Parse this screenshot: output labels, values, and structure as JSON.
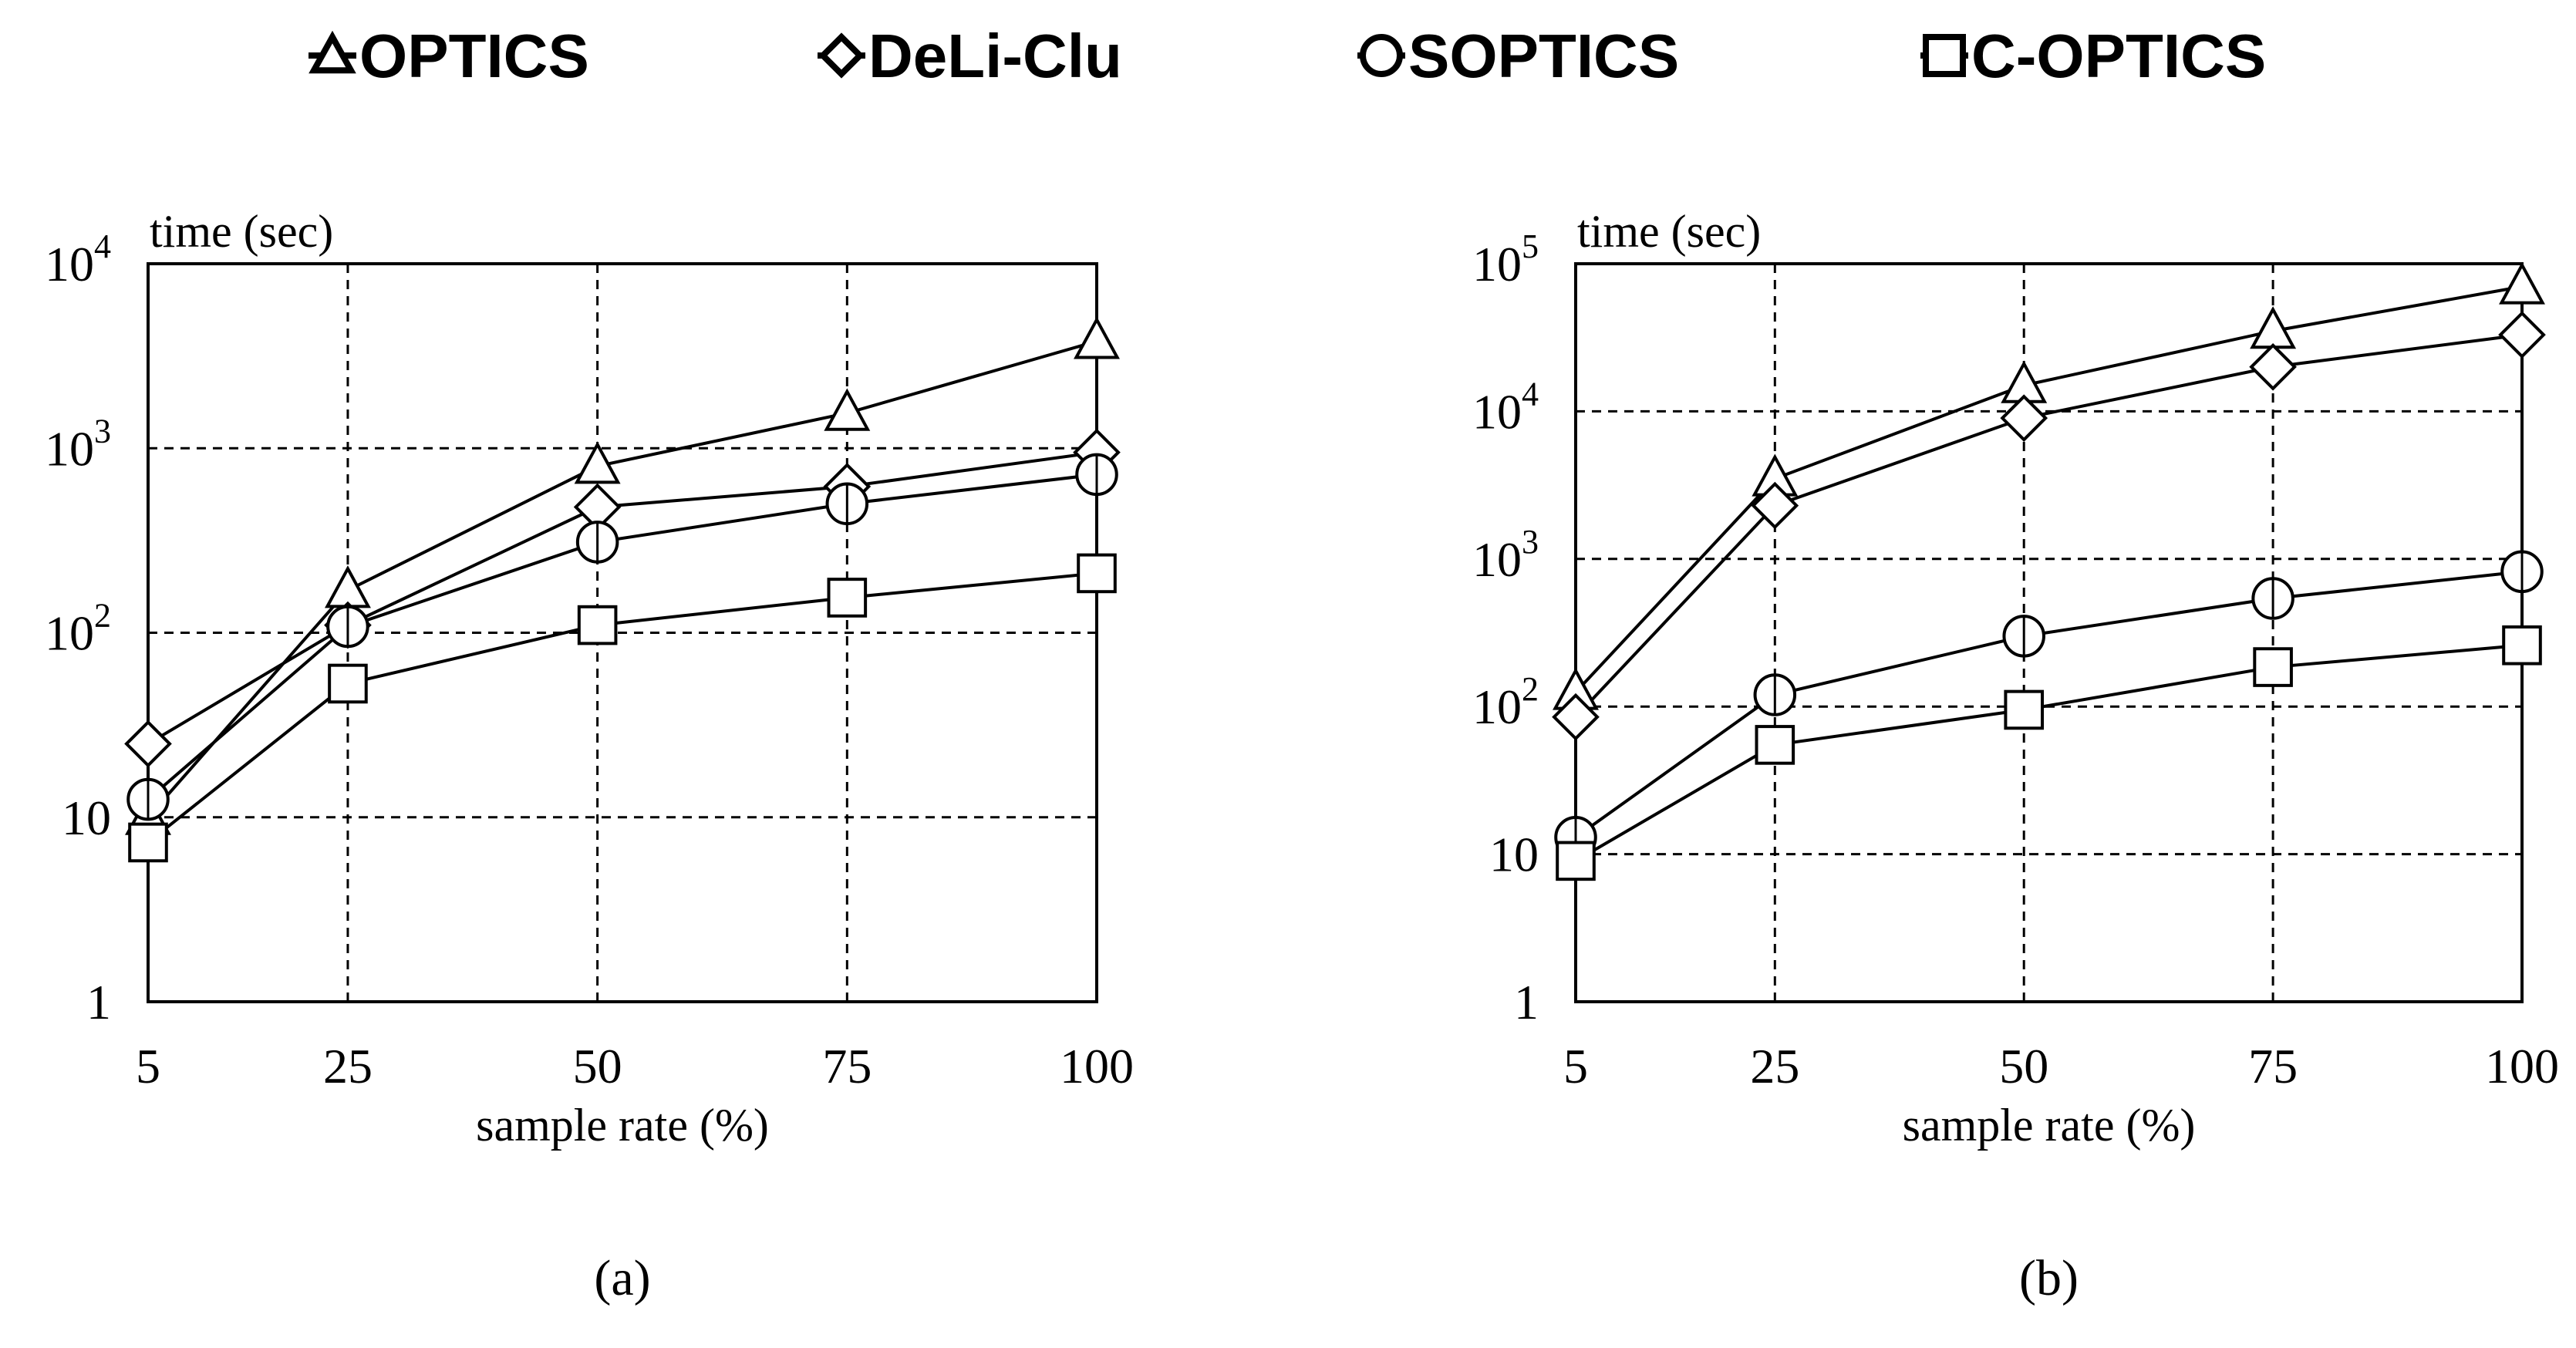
{
  "legend": {
    "items": [
      {
        "label": "OPTICS",
        "marker": "triangle"
      },
      {
        "label": "DeLi-Clu",
        "marker": "diamond"
      },
      {
        "label": "SOPTICS",
        "marker": "circle"
      },
      {
        "label": "C-OPTICS",
        "marker": "square"
      }
    ]
  },
  "colors": {
    "ink": "#000000",
    "background": "#ffffff"
  },
  "chart_data": [
    {
      "type": "line",
      "caption": "(a)",
      "ylabel": "time (sec)",
      "xlabel": "sample rate (%)",
      "yscale": "log",
      "ylim": [
        1,
        10000
      ],
      "x": [
        5,
        25,
        50,
        75,
        100
      ],
      "x_tick_labels": [
        "5",
        "25",
        "50",
        "75",
        "100"
      ],
      "y_ticks": [
        {
          "value": 1,
          "base": "1",
          "exp": ""
        },
        {
          "value": 10,
          "base": "10",
          "exp": ""
        },
        {
          "value": 100,
          "base": "10",
          "exp": "2"
        },
        {
          "value": 1000,
          "base": "10",
          "exp": "3"
        },
        {
          "value": 10000,
          "base": "10",
          "exp": "4"
        }
      ],
      "grid": true,
      "series": [
        {
          "name": "OPTICS",
          "marker": "triangle",
          "values": [
            10,
            170,
            800,
            1550,
            3800
          ]
        },
        {
          "name": "DeLi-Clu",
          "marker": "diamond",
          "values": [
            25,
            110,
            480,
            620,
            950
          ]
        },
        {
          "name": "SOPTICS",
          "marker": "circle",
          "values": [
            12.5,
            108,
            310,
            500,
            720
          ]
        },
        {
          "name": "C-OPTICS",
          "marker": "square",
          "values": [
            7.3,
            53,
            110,
            155,
            210
          ]
        }
      ]
    },
    {
      "type": "line",
      "caption": "(b)",
      "ylabel": "time (sec)",
      "xlabel": "sample rate (%)",
      "yscale": "log",
      "ylim": [
        1,
        100000
      ],
      "x": [
        5,
        25,
        50,
        75,
        100
      ],
      "x_tick_labels": [
        "5",
        "25",
        "50",
        "75",
        "100"
      ],
      "y_ticks": [
        {
          "value": 1,
          "base": "1",
          "exp": ""
        },
        {
          "value": 10,
          "base": "10",
          "exp": ""
        },
        {
          "value": 100,
          "base": "10",
          "exp": "2"
        },
        {
          "value": 1000,
          "base": "10",
          "exp": "3"
        },
        {
          "value": 10000,
          "base": "10",
          "exp": "4"
        },
        {
          "value": 100000,
          "base": "10",
          "exp": "5"
        }
      ],
      "grid": true,
      "series": [
        {
          "name": "OPTICS",
          "marker": "triangle",
          "values": [
            125,
            3500,
            15000,
            35000,
            70000
          ]
        },
        {
          "name": "DeLi-Clu",
          "marker": "diamond",
          "values": [
            85,
            2300,
            9000,
            20000,
            33000
          ]
        },
        {
          "name": "SOPTICS",
          "marker": "circle",
          "values": [
            13,
            120,
            300,
            540,
            820
          ]
        },
        {
          "name": "C-OPTICS",
          "marker": "square",
          "values": [
            9,
            55,
            95,
            185,
            260
          ]
        }
      ]
    }
  ]
}
